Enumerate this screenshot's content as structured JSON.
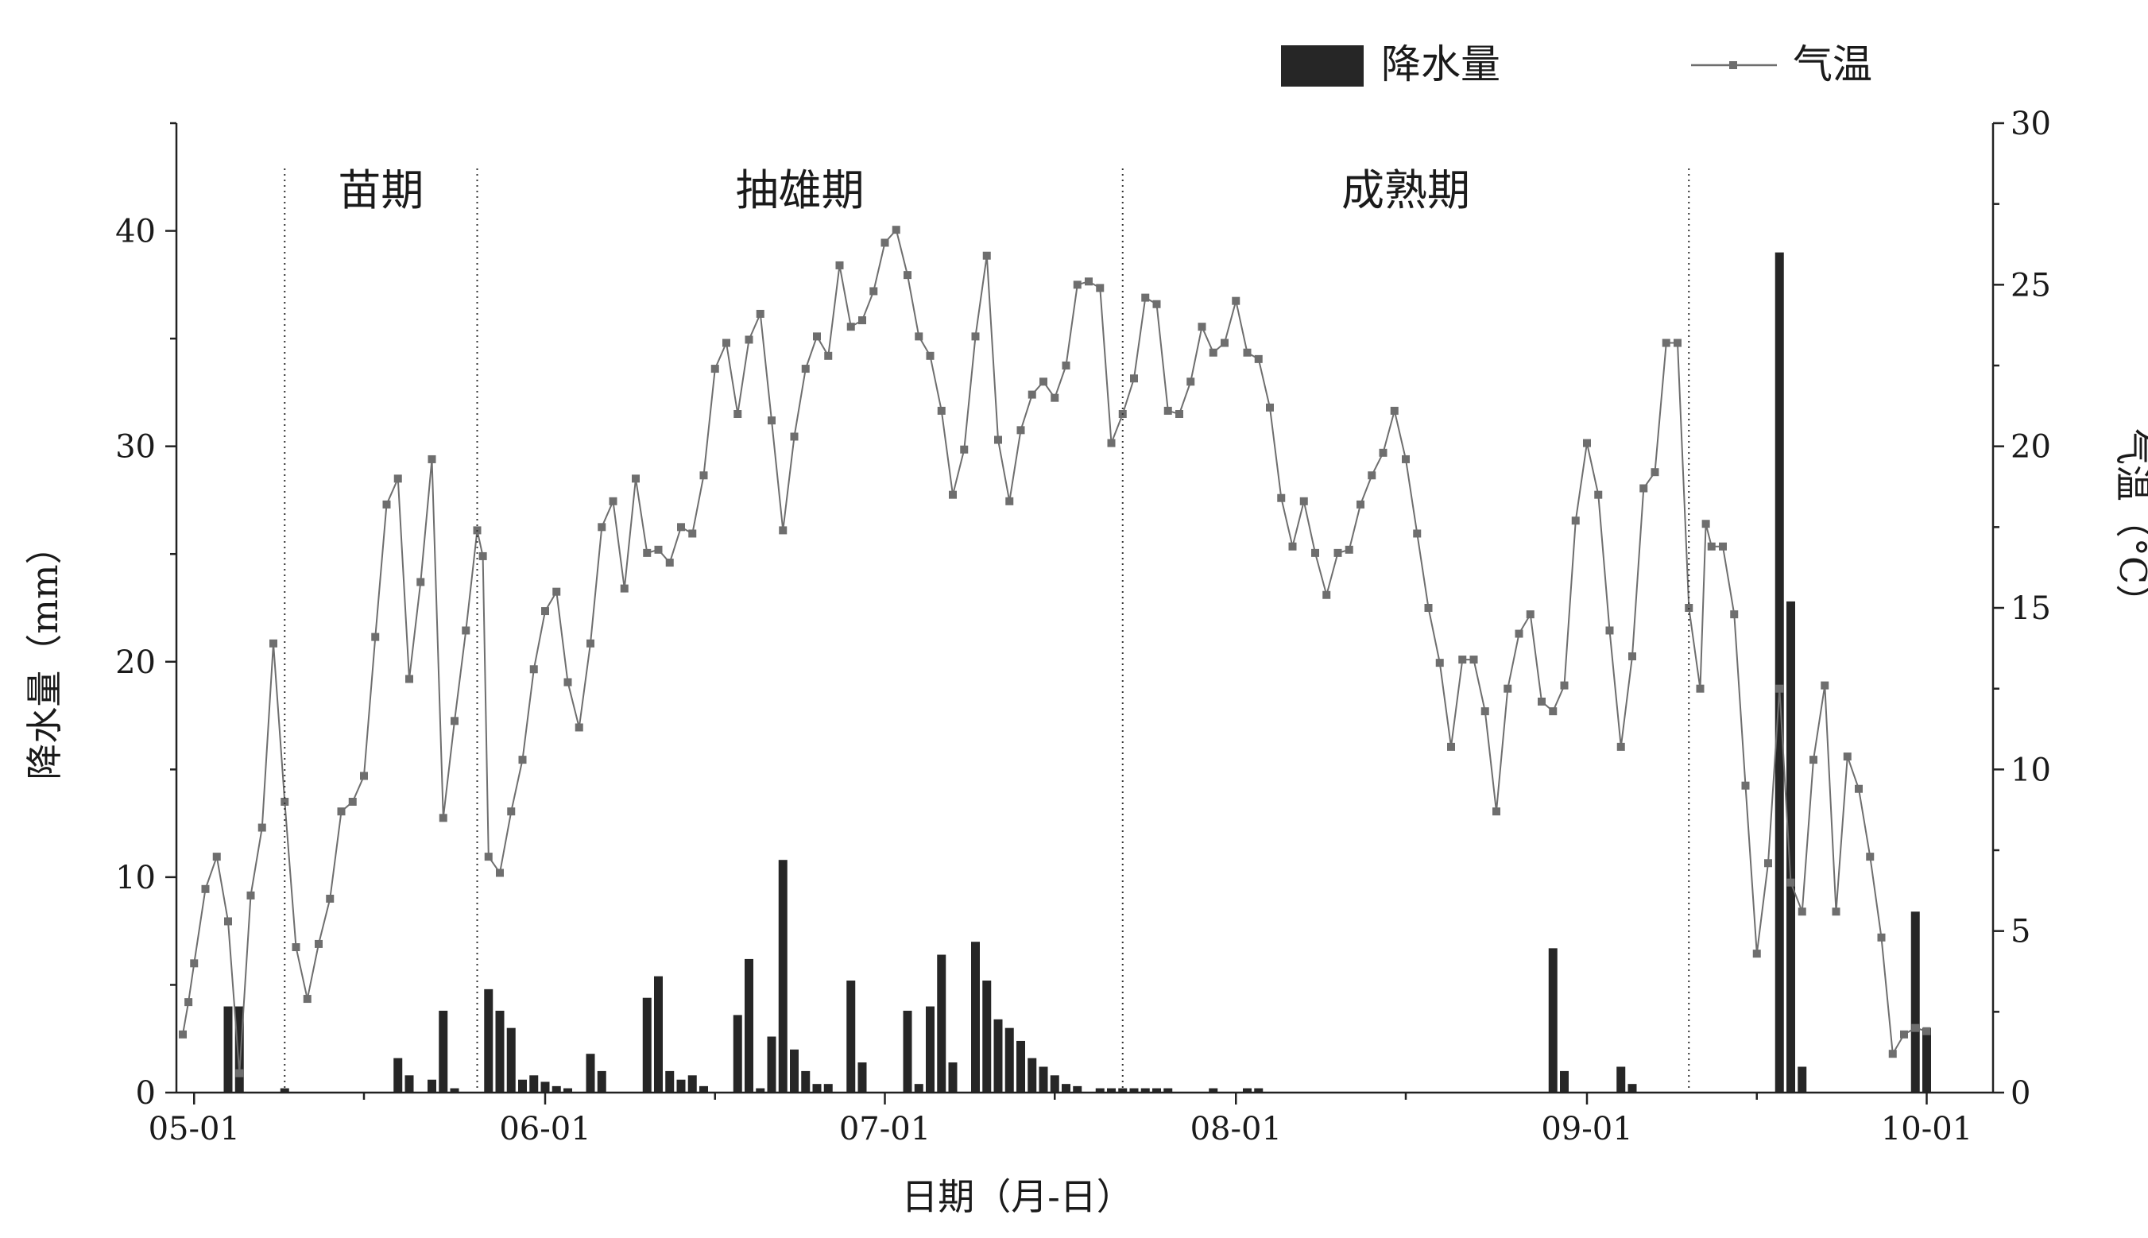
{
  "chart_data": {
    "type": "bar+line",
    "xlabel": "日期（月-日）",
    "ylabel_left": "降水量（mm）",
    "ylabel_right": "气温（°C）",
    "y_left_lim": [
      0,
      45
    ],
    "y_right_lim": [
      0,
      30
    ],
    "y_left_ticks": [
      0,
      10,
      20,
      30,
      40
    ],
    "y_right_ticks": [
      0,
      5,
      10,
      15,
      20,
      25,
      30
    ],
    "x_start_date": "04-30",
    "x_end_date": "10-01",
    "x_ticks": [
      {
        "label": "05-01",
        "day": 1
      },
      {
        "label": "06-01",
        "day": 32
      },
      {
        "label": "07-01",
        "day": 62
      },
      {
        "label": "08-01",
        "day": 93
      },
      {
        "label": "09-01",
        "day": 124
      },
      {
        "label": "10-01",
        "day": 154
      }
    ],
    "legend": {
      "bar": "降水量",
      "line": "气温",
      "position": "top-right"
    },
    "periods": [
      {
        "label": "苗期",
        "start": 9,
        "end": 26
      },
      {
        "label": "抽雄期",
        "start": 26,
        "end": 83
      },
      {
        "label": "成熟期",
        "start": 83,
        "end": 133
      }
    ],
    "period_boundaries": [
      9,
      26,
      83,
      133
    ],
    "series": [
      {
        "name": "降水量",
        "type": "bar",
        "points": [
          [
            4,
            4.0
          ],
          [
            5,
            4.0
          ],
          [
            9,
            0.2
          ],
          [
            19,
            1.6
          ],
          [
            20,
            0.8
          ],
          [
            22,
            0.6
          ],
          [
            23,
            3.8
          ],
          [
            24,
            0.2
          ],
          [
            27,
            4.8
          ],
          [
            28,
            3.8
          ],
          [
            29,
            3.0
          ],
          [
            30,
            0.6
          ],
          [
            31,
            0.8
          ],
          [
            32,
            0.5
          ],
          [
            33,
            0.3
          ],
          [
            34,
            0.2
          ],
          [
            36,
            1.8
          ],
          [
            37,
            1.0
          ],
          [
            41,
            4.4
          ],
          [
            42,
            5.4
          ],
          [
            43,
            1.0
          ],
          [
            44,
            0.6
          ],
          [
            45,
            0.8
          ],
          [
            46,
            0.3
          ],
          [
            49,
            3.6
          ],
          [
            50,
            6.2
          ],
          [
            51,
            0.2
          ],
          [
            52,
            2.6
          ],
          [
            53,
            10.8
          ],
          [
            54,
            2.0
          ],
          [
            55,
            1.0
          ],
          [
            56,
            0.4
          ],
          [
            57,
            0.4
          ],
          [
            59,
            5.2
          ],
          [
            60,
            1.4
          ],
          [
            64,
            3.8
          ],
          [
            65,
            0.4
          ],
          [
            66,
            4.0
          ],
          [
            67,
            6.4
          ],
          [
            68,
            1.4
          ],
          [
            70,
            7.0
          ],
          [
            71,
            5.2
          ],
          [
            72,
            3.4
          ],
          [
            73,
            3.0
          ],
          [
            74,
            2.4
          ],
          [
            75,
            1.6
          ],
          [
            76,
            1.2
          ],
          [
            77,
            0.8
          ],
          [
            78,
            0.4
          ],
          [
            79,
            0.3
          ],
          [
            81,
            0.2
          ],
          [
            82,
            0.2
          ],
          [
            83,
            0.2
          ],
          [
            84,
            0.2
          ],
          [
            85,
            0.2
          ],
          [
            86,
            0.2
          ],
          [
            87,
            0.2
          ],
          [
            91,
            0.2
          ],
          [
            94,
            0.2
          ],
          [
            95,
            0.2
          ],
          [
            121,
            6.7
          ],
          [
            122,
            1.0
          ],
          [
            127,
            1.2
          ],
          [
            128,
            0.4
          ],
          [
            141,
            39.0
          ],
          [
            142,
            22.8
          ],
          [
            143,
            1.2
          ],
          [
            153,
            8.4
          ],
          [
            154,
            3.0
          ]
        ]
      },
      {
        "name": "气温",
        "type": "line",
        "points": [
          [
            0,
            1.8
          ],
          [
            0.5,
            2.8
          ],
          [
            1,
            4.0
          ],
          [
            2,
            6.3
          ],
          [
            3,
            7.3
          ],
          [
            4,
            5.3
          ],
          [
            5,
            0.6
          ],
          [
            6,
            6.1
          ],
          [
            7,
            8.2
          ],
          [
            8,
            13.9
          ],
          [
            9,
            9.0
          ],
          [
            10,
            4.5
          ],
          [
            11,
            2.9
          ],
          [
            12,
            4.6
          ],
          [
            13,
            6.0
          ],
          [
            14,
            8.7
          ],
          [
            15,
            9.0
          ],
          [
            16,
            9.8
          ],
          [
            17,
            14.1
          ],
          [
            18,
            18.2
          ],
          [
            19,
            19.0
          ],
          [
            20,
            12.8
          ],
          [
            21,
            15.8
          ],
          [
            22,
            19.6
          ],
          [
            23,
            8.5
          ],
          [
            24,
            11.5
          ],
          [
            25,
            14.3
          ],
          [
            26,
            17.4
          ],
          [
            26.5,
            16.6
          ],
          [
            27,
            7.3
          ],
          [
            28,
            6.8
          ],
          [
            29,
            8.7
          ],
          [
            30,
            10.3
          ],
          [
            31,
            13.1
          ],
          [
            32,
            14.9
          ],
          [
            33,
            15.5
          ],
          [
            34,
            12.7
          ],
          [
            35,
            11.3
          ],
          [
            36,
            13.9
          ],
          [
            37,
            17.5
          ],
          [
            38,
            18.3
          ],
          [
            39,
            15.6
          ],
          [
            40,
            19.0
          ],
          [
            41,
            16.7
          ],
          [
            42,
            16.8
          ],
          [
            43,
            16.4
          ],
          [
            44,
            17.5
          ],
          [
            45,
            17.3
          ],
          [
            46,
            19.1
          ],
          [
            47,
            22.4
          ],
          [
            48,
            23.2
          ],
          [
            49,
            21.0
          ],
          [
            50,
            23.3
          ],
          [
            51,
            24.1
          ],
          [
            52,
            20.8
          ],
          [
            53,
            17.4
          ],
          [
            54,
            20.3
          ],
          [
            55,
            22.4
          ],
          [
            56,
            23.4
          ],
          [
            57,
            22.8
          ],
          [
            58,
            25.6
          ],
          [
            59,
            23.7
          ],
          [
            60,
            23.9
          ],
          [
            61,
            24.8
          ],
          [
            62,
            26.3
          ],
          [
            63,
            26.7
          ],
          [
            64,
            25.3
          ],
          [
            65,
            23.4
          ],
          [
            66,
            22.8
          ],
          [
            67,
            21.1
          ],
          [
            68,
            18.5
          ],
          [
            69,
            19.9
          ],
          [
            70,
            23.4
          ],
          [
            71,
            25.9
          ],
          [
            72,
            20.2
          ],
          [
            73,
            18.3
          ],
          [
            74,
            20.5
          ],
          [
            75,
            21.6
          ],
          [
            76,
            22.0
          ],
          [
            77,
            21.5
          ],
          [
            78,
            22.5
          ],
          [
            79,
            25.0
          ],
          [
            80,
            25.1
          ],
          [
            81,
            24.9
          ],
          [
            82,
            20.1
          ],
          [
            83,
            21.0
          ],
          [
            84,
            22.1
          ],
          [
            85,
            24.6
          ],
          [
            86,
            24.4
          ],
          [
            87,
            21.1
          ],
          [
            88,
            21.0
          ],
          [
            89,
            22.0
          ],
          [
            90,
            23.7
          ],
          [
            91,
            22.9
          ],
          [
            92,
            23.2
          ],
          [
            93,
            24.5
          ],
          [
            94,
            22.9
          ],
          [
            95,
            22.7
          ],
          [
            96,
            21.2
          ],
          [
            97,
            18.4
          ],
          [
            98,
            16.9
          ],
          [
            99,
            18.3
          ],
          [
            100,
            16.7
          ],
          [
            101,
            15.4
          ],
          [
            102,
            16.7
          ],
          [
            103,
            16.8
          ],
          [
            104,
            18.2
          ],
          [
            105,
            19.1
          ],
          [
            106,
            19.8
          ],
          [
            107,
            21.1
          ],
          [
            108,
            19.6
          ],
          [
            109,
            17.3
          ],
          [
            110,
            15.0
          ],
          [
            111,
            13.3
          ],
          [
            112,
            10.7
          ],
          [
            113,
            13.4
          ],
          [
            114,
            13.4
          ],
          [
            115,
            11.8
          ],
          [
            116,
            8.7
          ],
          [
            117,
            12.5
          ],
          [
            118,
            14.2
          ],
          [
            119,
            14.8
          ],
          [
            120,
            12.1
          ],
          [
            121,
            11.8
          ],
          [
            122,
            12.6
          ],
          [
            123,
            17.7
          ],
          [
            124,
            20.1
          ],
          [
            125,
            18.5
          ],
          [
            126,
            14.3
          ],
          [
            127,
            10.7
          ],
          [
            128,
            13.5
          ],
          [
            129,
            18.7
          ],
          [
            130,
            19.2
          ],
          [
            131,
            23.2
          ],
          [
            132,
            23.2
          ],
          [
            133,
            15.0
          ],
          [
            134,
            12.5
          ],
          [
            134.5,
            17.6
          ],
          [
            135,
            16.9
          ],
          [
            136,
            16.9
          ],
          [
            137,
            14.8
          ],
          [
            138,
            9.5
          ],
          [
            139,
            4.3
          ],
          [
            140,
            7.1
          ],
          [
            141,
            12.5
          ],
          [
            142,
            6.5
          ],
          [
            143,
            5.6
          ],
          [
            144,
            10.3
          ],
          [
            145,
            12.6
          ],
          [
            146,
            5.6
          ],
          [
            147,
            10.4
          ],
          [
            148,
            9.4
          ],
          [
            149,
            7.3
          ],
          [
            150,
            4.8
          ],
          [
            151,
            1.2
          ],
          [
            152,
            1.8
          ],
          [
            153,
            2.0
          ],
          [
            154,
            1.9
          ]
        ]
      }
    ]
  }
}
